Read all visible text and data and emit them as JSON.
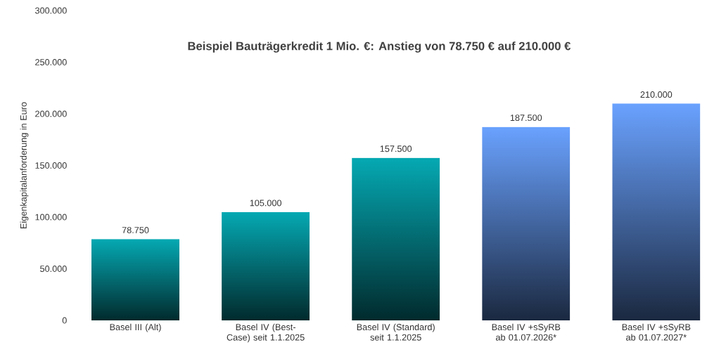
{
  "chart_data": {
    "type": "bar",
    "title": "Beispiel Bauträgerkredit 1 Mio. €: Anstieg von 78.750 € auf 210.000 €",
    "ylabel": "Eigenkapitalanforderung in Euro",
    "categories": [
      "Basel III (Alt)",
      "Basel IV (Best-Case) seit 1.1.2025",
      "Basel IV (Standard) seit 1.1.2025",
      "Basel IV +sSyRB ab 01.07.2026*",
      "Basel IV +sSyRB ab 01.07.2027*"
    ],
    "values": [
      78750,
      105000,
      157500,
      187500,
      210000
    ],
    "value_labels": [
      "78.750",
      "105.000",
      "157.500",
      "187.500",
      "210.000"
    ],
    "colors": [
      "#05a9b3",
      "#05a9b3",
      "#05a9b3",
      "#6aa2ff",
      "#6aa2ff"
    ],
    "ylim": [
      0,
      300000
    ],
    "yticks": [
      0,
      {
        "value": 50000,
        "label": "50.000"
      },
      {
        "value": 100000,
        "label": "100.000"
      },
      {
        "value": 150000,
        "label": "150.000"
      },
      {
        "value": 200000,
        "label": "200.000"
      },
      {
        "value": 250000,
        "label": "250.000"
      },
      {
        "value": 300000,
        "label": "300.000"
      }
    ],
    "grid": false
  }
}
